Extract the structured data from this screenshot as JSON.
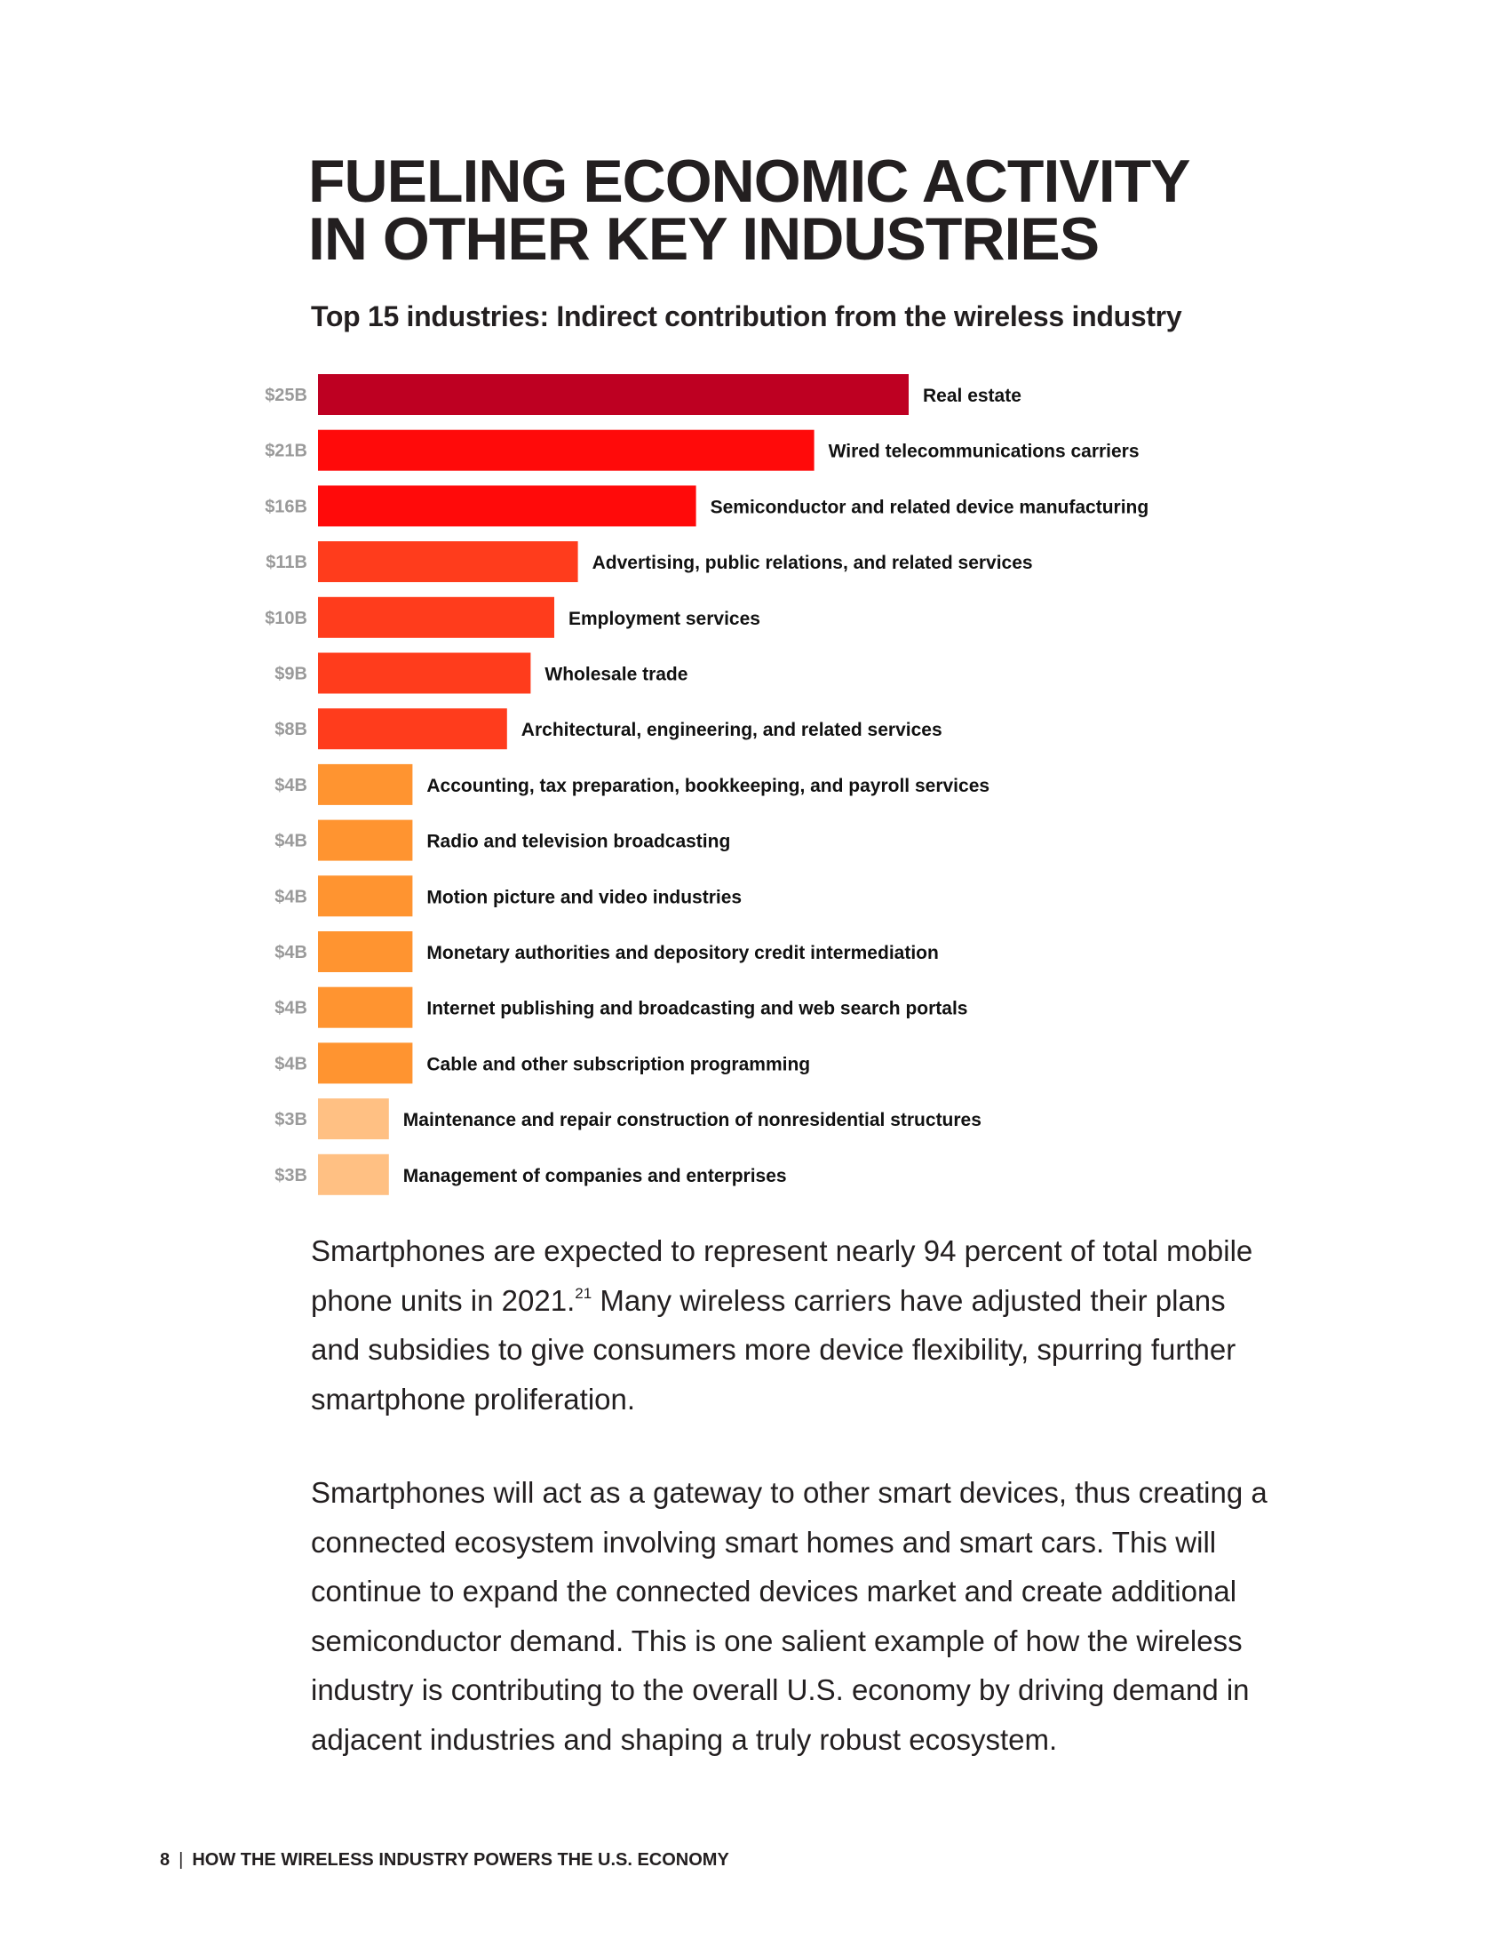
{
  "headline": {
    "line1": "FUELING ECONOMIC ACTIVITY",
    "line2": "IN OTHER KEY INDUSTRIES"
  },
  "chart_data": {
    "type": "bar",
    "orientation": "horizontal",
    "title": "Top 15 industries: Indirect contribution from the wireless industry",
    "unit": "billion USD",
    "categories": [
      "Real estate",
      "Wired telecommunications carriers",
      "Semiconductor and related device manufacturing",
      "Advertising, public relations, and related services",
      "Employment services",
      "Wholesale trade",
      "Architectural, engineering, and related services",
      "Accounting, tax preparation, bookkeeping, and payroll services",
      "Radio and television broadcasting",
      "Motion picture and video industries",
      "Monetary authorities and depository credit intermediation",
      "Internet publishing and broadcasting and web search portals",
      "Cable and other subscription programming",
      "Maintenance and repair construction of nonresidential structures",
      "Management of companies and enterprises"
    ],
    "values": [
      25,
      21,
      16,
      11,
      10,
      9,
      8,
      4,
      4,
      4,
      4,
      4,
      4,
      3,
      3
    ],
    "value_labels": [
      "$25B",
      "$21B",
      "$16B",
      "$11B",
      "$10B",
      "$9B",
      "$8B",
      "$4B",
      "$4B",
      "$4B",
      "$4B",
      "$4B",
      "$4B",
      "$3B",
      "$3B"
    ],
    "colors": [
      "#be0022",
      "#ff0a0a",
      "#ff0a0a",
      "#ff3c1c",
      "#ff3c1c",
      "#ff3c1c",
      "#ff3c1c",
      "#ff9430",
      "#ff9430",
      "#ff9430",
      "#ff9430",
      "#ff9430",
      "#ff9430",
      "#ffc083",
      "#ffc083"
    ],
    "grid": false,
    "legend": "none"
  },
  "body": {
    "para1_a": "Smartphones are expected to represent nearly 94 percent of total mobile phone units in 2021.",
    "para1_ref": "21",
    "para1_b": " Many wireless carriers have adjusted their plans and subsidies to give consumers more device flexibility, spurring further smartphone proliferation.",
    "para2": "Smartphones will act as a gateway to other smart devices, thus creating a connected ecosystem involving smart homes and smart cars. This will continue to expand the connected devices market and create additional semiconductor demand. This is one salient example of how the wireless industry is contributing to the overall U.S. economy by driving demand in adjacent industries and shaping a truly robust ecosystem."
  },
  "footer": {
    "page_number": "8",
    "separator": "|",
    "publication": "HOW THE WIRELESS INDUSTRY POWERS THE U.S. ECONOMY"
  }
}
